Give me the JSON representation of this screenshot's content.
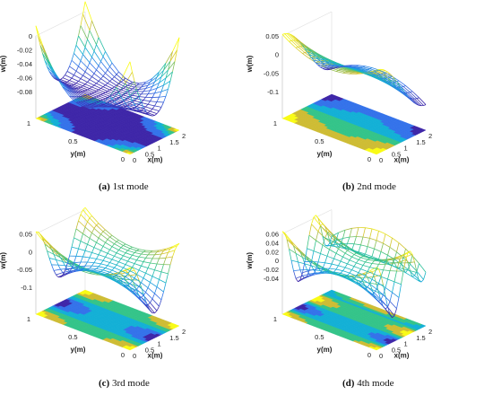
{
  "chart_data": [
    {
      "type": "surface",
      "mode": 1,
      "zlabel": "w(m)",
      "xlabel": "x(m)",
      "ylabel": "y(m)",
      "xlim": [
        0,
        2
      ],
      "ylim": [
        0,
        1
      ],
      "zlim": [
        -0.08,
        0
      ],
      "xticks": [
        "0",
        "0.5",
        "1",
        "1.5",
        "2"
      ],
      "yticks": [
        "0",
        "0.5",
        "1"
      ],
      "zticks": [
        "0",
        "-0.02",
        "-0.04",
        "-0.06",
        "-0.08"
      ],
      "zfloor": -0.08,
      "amplitude": -0.08,
      "caption_label": "(a)",
      "caption_text": "1st mode"
    },
    {
      "type": "surface",
      "mode": 2,
      "zlabel": "w(m)",
      "xlabel": "x(m)",
      "ylabel": "y(m)",
      "xlim": [
        0,
        2
      ],
      "ylim": [
        0,
        1
      ],
      "zlim": [
        -0.1,
        0.05
      ],
      "xticks": [
        "0",
        "0.5",
        "1",
        "1.5",
        "2"
      ],
      "yticks": [
        "0",
        "0.5",
        "1"
      ],
      "zticks": [
        "0.05",
        "0",
        "-0.05",
        "-0.1"
      ],
      "zfloor": -0.1,
      "amplitude": 0.08,
      "caption_label": "(b)",
      "caption_text": "2nd mode"
    },
    {
      "type": "surface",
      "mode": 3,
      "zlabel": "w(m)",
      "xlabel": "x(m)",
      "ylabel": "y(m)",
      "xlim": [
        0,
        2
      ],
      "ylim": [
        0,
        1
      ],
      "zlim": [
        -0.1,
        0.05
      ],
      "xticks": [
        "0",
        "0.5",
        "1",
        "1.5",
        "2"
      ],
      "yticks": [
        "0",
        "0.5",
        "1"
      ],
      "zticks": [
        "0.05",
        "0",
        "-0.05",
        "-0.1"
      ],
      "zfloor": -0.1,
      "amplitude": 0.08,
      "caption_label": "(c)",
      "caption_text": "3rd mode"
    },
    {
      "type": "surface",
      "mode": 4,
      "zlabel": "w(m)",
      "xlabel": "x(m)",
      "ylabel": "y(m)",
      "xlim": [
        0,
        2
      ],
      "ylim": [
        0,
        1
      ],
      "zlim": [
        -0.06,
        0.06
      ],
      "xticks": [
        "0",
        "0.5",
        "1",
        "1.5",
        "2"
      ],
      "yticks": [
        "0",
        "0.5",
        "1"
      ],
      "zticks": [
        "0.06",
        "0.04",
        "0.02",
        "0",
        "-0.02",
        "-0.04"
      ],
      "zfloor": -0.06,
      "amplitude": 0.075,
      "caption_label": "(d)",
      "caption_text": "4th mode"
    }
  ]
}
